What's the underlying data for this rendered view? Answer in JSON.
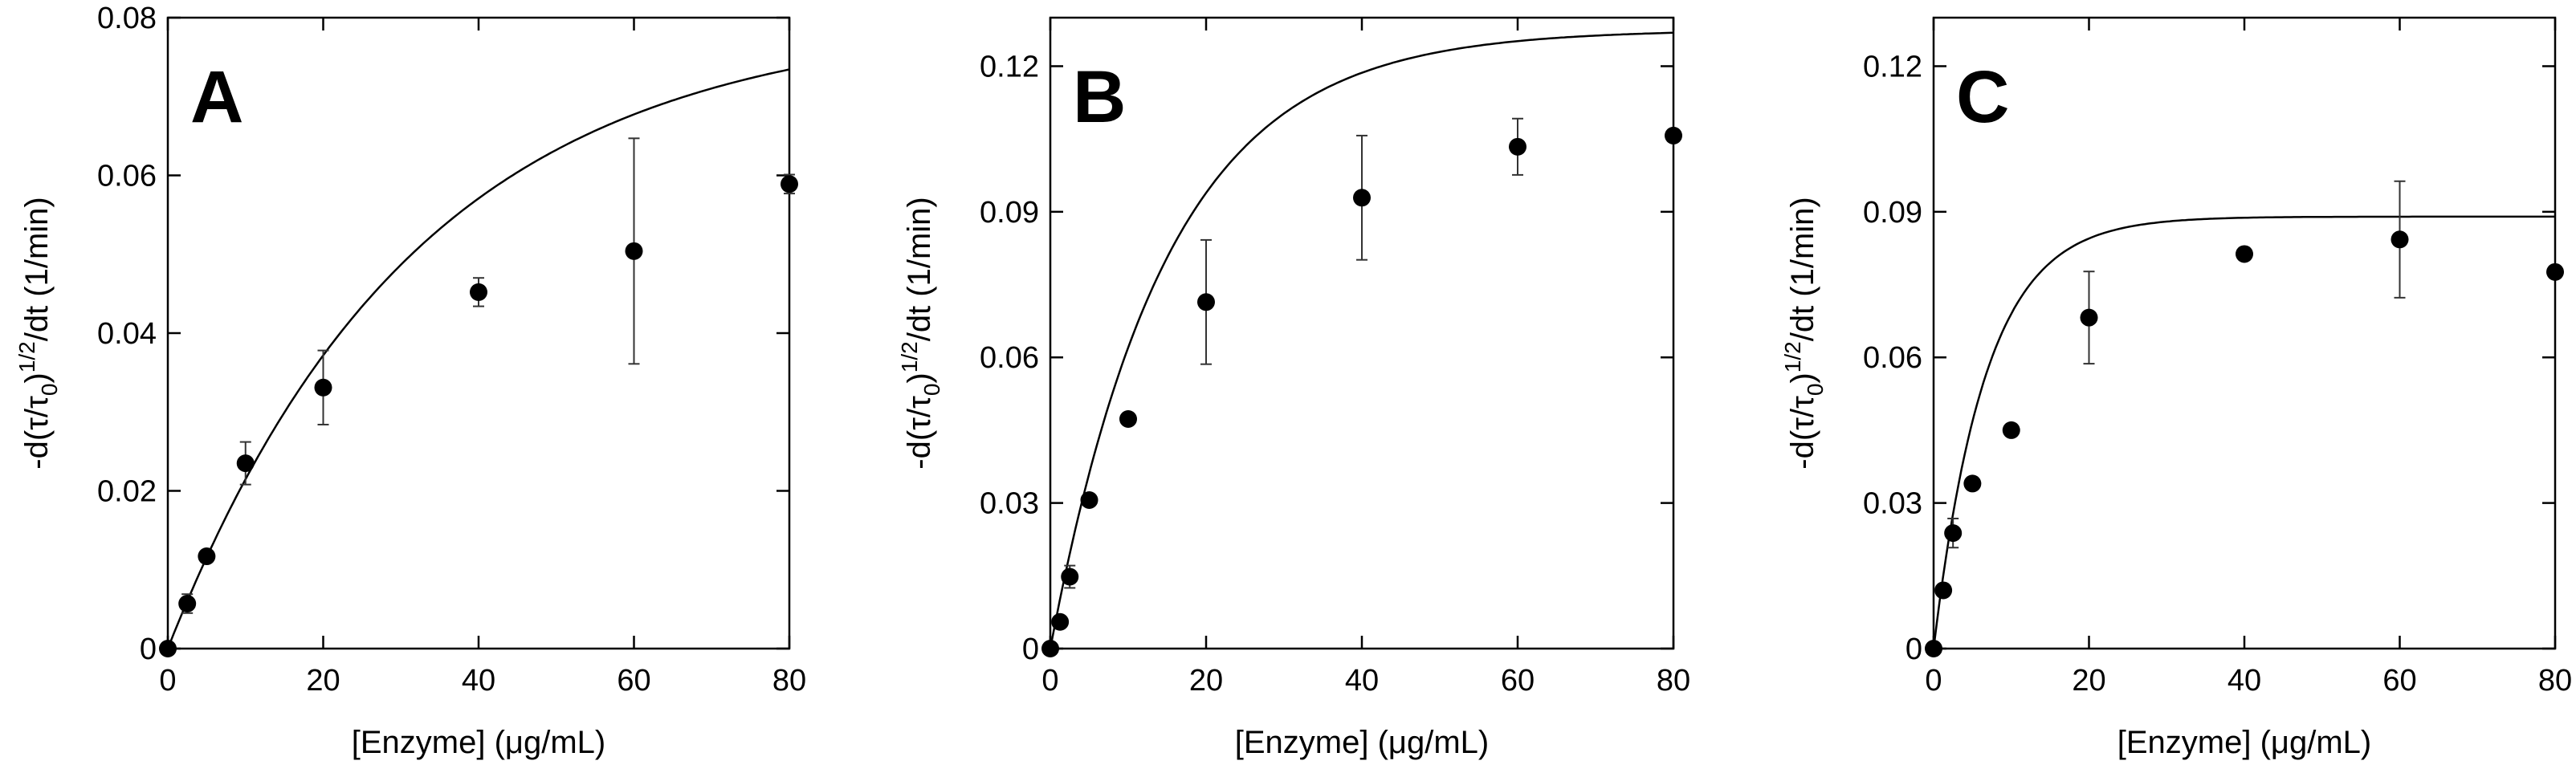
{
  "chart_data": [
    {
      "type": "scatter",
      "panel": "A",
      "xlabel": "[Enzyme] (μg/mL)",
      "ylabel": "-d(τ/τ",
      "ylabel_sub": "0",
      "ylabel_tail": ")",
      "ylabel_sup": "1/2",
      "ylabel_end": "/dt (1/min)",
      "xlim": [
        0,
        80
      ],
      "ylim": [
        0,
        0.08
      ],
      "xticks": [
        0,
        20,
        40,
        60,
        80
      ],
      "yticks": [
        0,
        0.02,
        0.04,
        0.06,
        0.08
      ],
      "xtick_labels": [
        "0",
        "20",
        "40",
        "60",
        "80"
      ],
      "ytick_labels": [
        "0",
        "0.02",
        "0.04",
        "0.06",
        "0.08"
      ],
      "points": [
        {
          "x": 0,
          "y": 0,
          "err": 0
        },
        {
          "x": 2.5,
          "y": 0.0057,
          "err": 0.0012
        },
        {
          "x": 5,
          "y": 0.0117,
          "err": 0
        },
        {
          "x": 10,
          "y": 0.0235,
          "err": 0.0027
        },
        {
          "x": 20,
          "y": 0.0331,
          "err": 0.0047
        },
        {
          "x": 40,
          "y": 0.0452,
          "err": 0.0018
        },
        {
          "x": 60,
          "y": 0.0504,
          "err": 0.0143
        },
        {
          "x": 80,
          "y": 0.0589,
          "err": 0.0012
        }
      ],
      "fit": {
        "model": "saturation",
        "vmax": 0.08,
        "k": 32
      }
    },
    {
      "type": "scatter",
      "panel": "B",
      "xlabel": "[Enzyme] (μg/mL)",
      "ylabel": "-d(τ/τ",
      "ylabel_sub": "0",
      "ylabel_tail": ")",
      "ylabel_sup": "1/2",
      "ylabel_end": "/dt (1/min)",
      "xlim": [
        0,
        80
      ],
      "ylim": [
        0,
        0.13
      ],
      "xticks": [
        0,
        20,
        40,
        60,
        80
      ],
      "yticks": [
        0,
        0.03,
        0.06,
        0.09,
        0.12
      ],
      "xtick_labels": [
        "0",
        "20",
        "40",
        "60",
        "80"
      ],
      "ytick_labels": [
        "0",
        "0.03",
        "0.06",
        "0.09",
        "0.12"
      ],
      "points": [
        {
          "x": 0,
          "y": 0,
          "err": 0
        },
        {
          "x": 1.25,
          "y": 0.0055,
          "err": 0
        },
        {
          "x": 2.5,
          "y": 0.0148,
          "err": 0.0023
        },
        {
          "x": 5,
          "y": 0.0306,
          "err": 0
        },
        {
          "x": 10,
          "y": 0.0473,
          "err": 0
        },
        {
          "x": 20,
          "y": 0.0714,
          "err": 0.0128
        },
        {
          "x": 40,
          "y": 0.0929,
          "err": 0.0128
        },
        {
          "x": 60,
          "y": 0.1034,
          "err": 0.0058
        },
        {
          "x": 80,
          "y": 0.1057,
          "err": 0
        }
      ],
      "fit": {
        "model": "saturation",
        "vmax": 0.1275,
        "k": 15
      }
    },
    {
      "type": "scatter",
      "panel": "C",
      "xlabel": "[Enzyme] (μg/mL)",
      "ylabel": "-d(τ/τ",
      "ylabel_sub": "0",
      "ylabel_tail": ")",
      "ylabel_sup": "1/2",
      "ylabel_end": "/dt (1/min)",
      "xlim": [
        0,
        80
      ],
      "ylim": [
        0,
        0.13
      ],
      "xticks": [
        0,
        20,
        40,
        60,
        80
      ],
      "yticks": [
        0,
        0.03,
        0.06,
        0.09,
        0.12
      ],
      "xtick_labels": [
        "0",
        "20",
        "40",
        "60",
        "80"
      ],
      "ytick_labels": [
        "0",
        "0.03",
        "0.06",
        "0.09",
        "0.12"
      ],
      "points": [
        {
          "x": 0,
          "y": 0,
          "err": 0
        },
        {
          "x": 1.25,
          "y": 0.012,
          "err": 0
        },
        {
          "x": 2.5,
          "y": 0.0238,
          "err": 0.003
        },
        {
          "x": 5,
          "y": 0.034,
          "err": 0
        },
        {
          "x": 10,
          "y": 0.045,
          "err": 0
        },
        {
          "x": 20,
          "y": 0.0682,
          "err": 0.0095
        },
        {
          "x": 40,
          "y": 0.0813,
          "err": 0
        },
        {
          "x": 60,
          "y": 0.0843,
          "err": 0.012
        },
        {
          "x": 80,
          "y": 0.0776,
          "err": 0
        }
      ],
      "fit": {
        "model": "saturation",
        "vmax": 0.089,
        "k": 6.7
      }
    }
  ]
}
